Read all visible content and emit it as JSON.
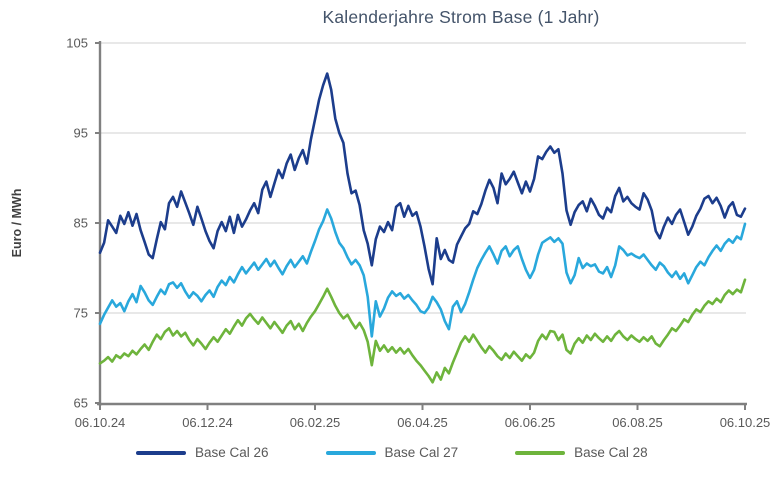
{
  "chart_data": {
    "type": "line",
    "title": "Kalenderjahre Strom Base (1 Jahr)",
    "xlabel": "",
    "ylabel": "Euro / MWh",
    "ylim": [
      65,
      105
    ],
    "y_ticks": [
      65,
      75,
      85,
      95,
      105
    ],
    "x_tick_labels": [
      "06.10.24",
      "06.12.24",
      "06.02.25",
      "06.04.25",
      "06.06.25",
      "06.08.25",
      "06.10.25"
    ],
    "grid": "horizontal-on",
    "legend_position": "bottom-center",
    "colors": {
      "background": "#FFFFFF",
      "grid": "#D9D9D9",
      "axis": "#808080",
      "title": "#44546A",
      "tick_label": "#595959",
      "axis_title": "#404040"
    },
    "series": [
      {
        "name": "Base Cal 26",
        "color": "#1C3D8C",
        "values": [
          81.7,
          82.8,
          85.3,
          84.6,
          83.9,
          85.8,
          84.9,
          86.2,
          84.7,
          86.0,
          84.2,
          82.9,
          81.5,
          81.1,
          83.2,
          85.1,
          84.3,
          87.2,
          87.9,
          86.8,
          88.5,
          87.3,
          86.1,
          84.8,
          86.8,
          85.5,
          84.1,
          83.0,
          82.2,
          84.1,
          85.1,
          84.1,
          85.7,
          83.9,
          85.9,
          84.6,
          85.4,
          86.4,
          87.2,
          86.1,
          88.7,
          89.6,
          87.9,
          89.4,
          90.9,
          90.0,
          91.6,
          92.6,
          90.9,
          92.2,
          93.1,
          91.6,
          94.3,
          96.5,
          98.7,
          100.3,
          101.6,
          99.8,
          96.6,
          95.0,
          93.9,
          90.5,
          88.3,
          88.6,
          87.0,
          84.2,
          82.7,
          80.3,
          83.2,
          84.6,
          84.0,
          85.1,
          84.2,
          86.8,
          87.2,
          85.7,
          86.9,
          85.8,
          86.2,
          84.6,
          82.4,
          79.9,
          78.2,
          83.3,
          81.0,
          82.0,
          80.9,
          80.6,
          82.6,
          83.5,
          84.4,
          84.9,
          86.3,
          86.0,
          87.1,
          88.6,
          89.8,
          88.9,
          87.2,
          90.5,
          89.3,
          89.9,
          90.7,
          89.5,
          88.3,
          89.6,
          88.5,
          89.9,
          92.4,
          92.1,
          92.9,
          93.5,
          92.8,
          93.2,
          90.5,
          86.4,
          84.8,
          86.2,
          87.0,
          87.4,
          86.3,
          87.7,
          86.9,
          85.9,
          85.5,
          86.7,
          86.2,
          88.0,
          88.9,
          87.4,
          87.9,
          87.2,
          86.8,
          86.5,
          88.3,
          87.6,
          86.4,
          84.1,
          83.3,
          84.6,
          85.6,
          84.9,
          85.9,
          86.5,
          85.1,
          83.7,
          84.6,
          85.8,
          86.6,
          87.7,
          88.0,
          87.2,
          87.8,
          86.9,
          85.6,
          86.8,
          87.3,
          85.9,
          85.7,
          86.6
        ]
      },
      {
        "name": "Base Cal 27",
        "color": "#29A8DC",
        "values": [
          73.8,
          74.8,
          75.6,
          76.4,
          75.7,
          76.1,
          75.2,
          76.3,
          77.1,
          76.2,
          78.0,
          77.3,
          76.4,
          75.9,
          76.8,
          77.6,
          77.1,
          78.2,
          78.4,
          77.8,
          78.3,
          77.4,
          76.7,
          77.3,
          76.9,
          76.3,
          77.0,
          77.5,
          76.8,
          77.9,
          78.6,
          78.1,
          79.0,
          78.4,
          79.3,
          80.1,
          79.4,
          80.0,
          80.6,
          79.8,
          80.4,
          81.0,
          80.2,
          80.8,
          80.0,
          79.3,
          80.2,
          80.9,
          80.1,
          80.7,
          81.3,
          80.5,
          81.8,
          83.0,
          84.3,
          85.2,
          86.5,
          85.5,
          84.0,
          82.8,
          82.2,
          81.2,
          80.4,
          80.9,
          80.3,
          79.2,
          76.8,
          72.4,
          76.3,
          74.6,
          75.5,
          76.7,
          77.4,
          76.9,
          77.2,
          76.6,
          77.0,
          76.4,
          75.9,
          75.2,
          75.0,
          75.6,
          76.8,
          76.2,
          75.4,
          74.1,
          73.2,
          75.7,
          76.3,
          75.1,
          76.0,
          77.3,
          78.7,
          80.0,
          80.9,
          81.7,
          82.4,
          81.5,
          80.5,
          81.9,
          82.4,
          81.3,
          82.0,
          82.4,
          81.0,
          79.8,
          78.9,
          79.8,
          81.5,
          82.8,
          83.1,
          83.4,
          82.9,
          83.3,
          82.7,
          79.5,
          78.3,
          79.2,
          81.1,
          80.0,
          80.5,
          80.2,
          80.4,
          79.6,
          79.4,
          80.1,
          79.0,
          80.3,
          82.4,
          82.0,
          81.4,
          81.6,
          81.3,
          81.1,
          81.5,
          80.9,
          80.3,
          79.8,
          80.6,
          80.2,
          79.5,
          79.0,
          79.6,
          78.8,
          79.4,
          78.3,
          79.2,
          80.1,
          80.7,
          80.3,
          81.2,
          81.9,
          82.5,
          81.9,
          82.7,
          83.2,
          82.8,
          83.5,
          83.2,
          84.9
        ]
      },
      {
        "name": "Base Cal 28",
        "color": "#6EB43C",
        "values": [
          69.4,
          69.7,
          70.1,
          69.6,
          70.3,
          70.0,
          70.5,
          70.2,
          70.8,
          70.4,
          71.0,
          71.5,
          70.9,
          71.8,
          72.6,
          72.1,
          72.9,
          73.3,
          72.5,
          73.0,
          72.4,
          72.8,
          72.0,
          71.4,
          72.1,
          71.6,
          71.0,
          71.7,
          72.3,
          71.8,
          72.5,
          73.2,
          72.7,
          73.5,
          74.2,
          73.6,
          74.4,
          74.9,
          74.3,
          73.8,
          74.5,
          73.9,
          73.3,
          74.0,
          73.4,
          72.8,
          73.6,
          74.1,
          73.2,
          73.8,
          73.0,
          73.9,
          74.6,
          75.2,
          76.0,
          76.8,
          77.7,
          76.8,
          75.8,
          75.0,
          74.4,
          74.8,
          74.0,
          73.3,
          73.9,
          73.1,
          71.8,
          69.2,
          71.9,
          70.8,
          71.4,
          70.7,
          71.2,
          70.6,
          71.1,
          70.5,
          71.0,
          70.3,
          69.7,
          69.2,
          68.6,
          68.0,
          67.3,
          68.4,
          67.6,
          68.9,
          68.3,
          69.5,
          70.6,
          71.7,
          72.4,
          71.8,
          72.6,
          71.9,
          71.2,
          70.6,
          71.3,
          70.8,
          70.2,
          69.8,
          70.5,
          70.0,
          70.7,
          70.2,
          69.7,
          70.4,
          70.0,
          70.6,
          71.9,
          72.6,
          72.1,
          73.0,
          72.9,
          72.0,
          72.6,
          70.9,
          70.5,
          71.6,
          72.2,
          71.7,
          72.5,
          72.0,
          72.7,
          72.2,
          71.8,
          72.4,
          71.9,
          72.6,
          73.0,
          72.4,
          72.0,
          72.5,
          72.1,
          71.8,
          72.3,
          71.9,
          72.4,
          71.6,
          71.3,
          72.0,
          72.6,
          73.3,
          73.0,
          73.6,
          74.3,
          74.0,
          74.8,
          75.4,
          75.1,
          75.8,
          76.3,
          76.0,
          76.6,
          76.2,
          77.0,
          77.5,
          77.1,
          77.6,
          77.3,
          78.7
        ]
      }
    ]
  }
}
